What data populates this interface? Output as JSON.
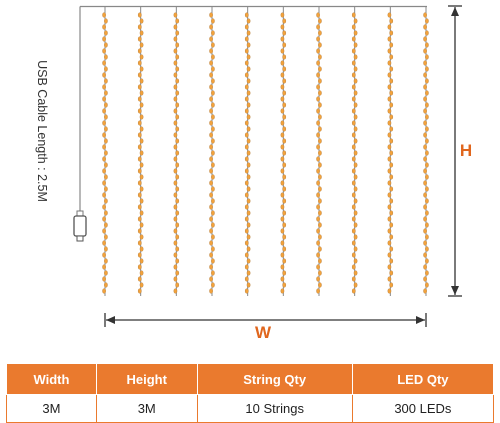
{
  "diagram": {
    "cable_label": "USB Cable Length : 2.5M",
    "height_label": "H",
    "width_label": "W",
    "string_count": 10,
    "colors": {
      "accent": "#e0661d",
      "header_bg": "#ea7a2e",
      "wire": "#888888",
      "led": "#f2a23c"
    }
  },
  "spec_table": {
    "headers": [
      "Width",
      "Height",
      "String Qty",
      "LED Qty"
    ],
    "values": [
      "3M",
      "3M",
      "10 Strings",
      "300 LEDs"
    ]
  }
}
